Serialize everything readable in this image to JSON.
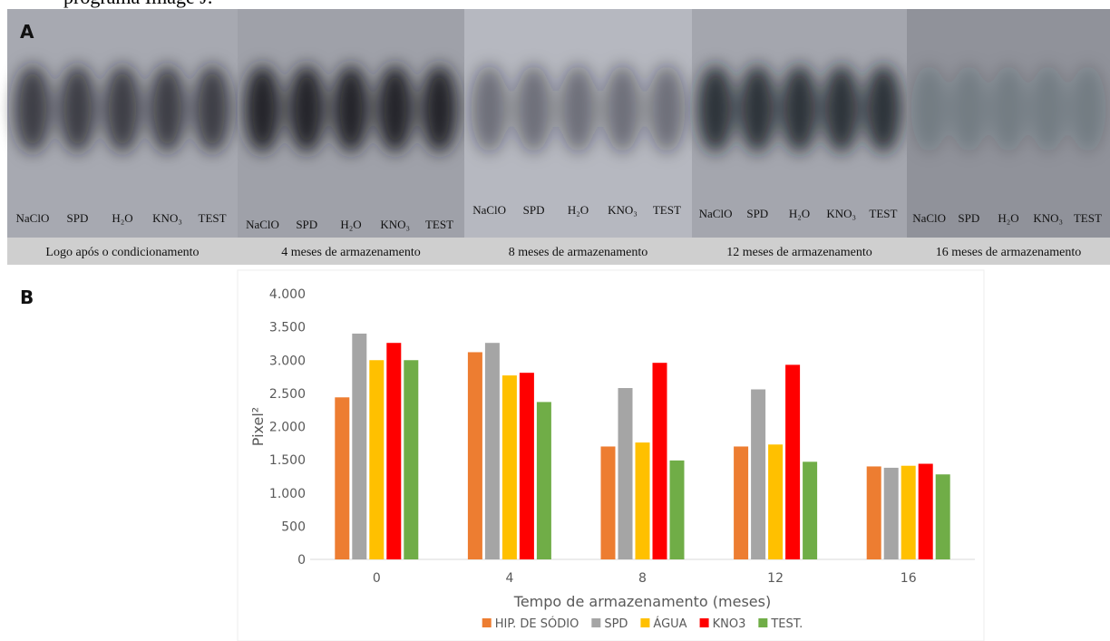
{
  "header_text": "programa Image J.",
  "panel_a": {
    "label": "A",
    "panels": [
      {
        "lanes": [
          "NaClO",
          "SPD",
          "H₂O",
          "KNO₃",
          "TEST"
        ],
        "caption": "Logo após o condicionamento"
      },
      {
        "lanes": [
          "NaClO",
          "SPD",
          "H₂O",
          "KNO₃",
          "TEST"
        ],
        "caption": "4 meses de armazenamento"
      },
      {
        "lanes": [
          "NaClO",
          "SPD",
          "H₂O",
          "KNO₃",
          "TEST"
        ],
        "caption": "8 meses de armazenamento"
      },
      {
        "lanes": [
          "NaClO",
          "SPD",
          "H₂O",
          "KNO₃",
          "TEST"
        ],
        "caption": "12 meses de armazenamento"
      },
      {
        "lanes": [
          "NaClO",
          "SPD",
          "H₂O",
          "KNO₃",
          "TEST"
        ],
        "caption": "16 meses de armazenamento"
      }
    ]
  },
  "panel_b_label": "B",
  "chart_data": {
    "type": "bar",
    "x_label": "Tempo de armazenamento (meses)",
    "y_label": "Pixel²",
    "categories": [
      "0",
      "4",
      "8",
      "12",
      "16"
    ],
    "series": [
      {
        "name": "HIP. DE SÓDIO",
        "color": "#ED7D31",
        "values": [
          2440,
          3120,
          1700,
          1700,
          1400
        ]
      },
      {
        "name": "SPD",
        "color": "#A5A5A5",
        "values": [
          3400,
          3260,
          2580,
          2560,
          1380
        ]
      },
      {
        "name": "ÁGUA",
        "color": "#FFC000",
        "values": [
          3000,
          2770,
          1760,
          1730,
          1410
        ]
      },
      {
        "name": "KNO3",
        "color": "#FF0000",
        "values": [
          3260,
          2810,
          2960,
          2930,
          1440
        ]
      },
      {
        "name": "TEST.",
        "color": "#70AD47",
        "values": [
          3000,
          2370,
          1490,
          1470,
          1280
        ]
      }
    ],
    "ylim": [
      0,
      4000
    ],
    "yticks": [
      0,
      500,
      {
        "value": 1000,
        "label": "1.000"
      },
      {
        "value": 1500,
        "label": "1.500"
      },
      {
        "value": 2000,
        "label": "2.000"
      },
      {
        "value": 2500,
        "label": "2.500"
      },
      {
        "value": 3000,
        "label": "3.000"
      },
      {
        "value": 3500,
        "label": "3.500"
      },
      {
        "value": 4000,
        "label": "4.000"
      }
    ],
    "grid": false,
    "legend": "bottom"
  }
}
